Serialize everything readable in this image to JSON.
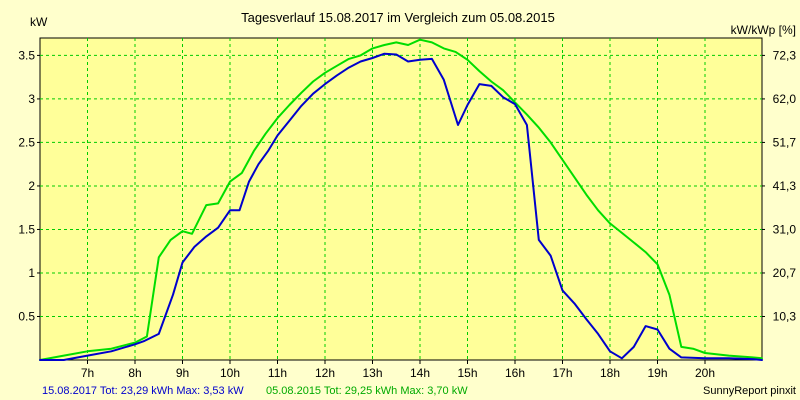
{
  "chart_data": {
    "type": "line",
    "title": "Tagesverlauf 15.08.2017 im Vergleich zum 05.08.2015",
    "ylabel_left": "kW",
    "ylabel_right": "kW/kWp [%]",
    "x_ticks": [
      "7h",
      "8h",
      "9h",
      "10h",
      "11h",
      "12h",
      "13h",
      "14h",
      "15h",
      "16h",
      "17h",
      "18h",
      "19h",
      "20h"
    ],
    "x_range": [
      6.0,
      21.2
    ],
    "y_range_left": [
      0,
      3.7
    ],
    "y_ticks_left": [
      "0.5",
      "1",
      "1.5",
      "2",
      "2.5",
      "3",
      "3.5"
    ],
    "y_ticks_right": [
      "10,3",
      "20,7",
      "31,0",
      "41,3",
      "51,7",
      "62,0",
      "72,3"
    ],
    "grid": true,
    "colors": {
      "background": "#ffffcc",
      "plot_bg": "#ffff99",
      "grid": "#00cc00",
      "title": "#000000"
    },
    "series": [
      {
        "name": "15.08.2017",
        "color": "#0000cc",
        "points": [
          [
            6.0,
            0.0
          ],
          [
            6.5,
            0.0
          ],
          [
            7.0,
            0.05
          ],
          [
            7.5,
            0.1
          ],
          [
            8.0,
            0.18
          ],
          [
            8.2,
            0.22
          ],
          [
            8.5,
            0.3
          ],
          [
            8.8,
            0.75
          ],
          [
            9.0,
            1.12
          ],
          [
            9.25,
            1.3
          ],
          [
            9.5,
            1.42
          ],
          [
            9.75,
            1.52
          ],
          [
            10.0,
            1.72
          ],
          [
            10.2,
            1.72
          ],
          [
            10.4,
            2.05
          ],
          [
            10.6,
            2.25
          ],
          [
            10.8,
            2.4
          ],
          [
            11.0,
            2.58
          ],
          [
            11.25,
            2.75
          ],
          [
            11.5,
            2.92
          ],
          [
            11.75,
            3.06
          ],
          [
            12.0,
            3.17
          ],
          [
            12.25,
            3.27
          ],
          [
            12.5,
            3.36
          ],
          [
            12.75,
            3.43
          ],
          [
            13.0,
            3.47
          ],
          [
            13.25,
            3.52
          ],
          [
            13.5,
            3.51
          ],
          [
            13.75,
            3.43
          ],
          [
            14.0,
            3.45
          ],
          [
            14.25,
            3.46
          ],
          [
            14.5,
            3.22
          ],
          [
            14.8,
            2.7
          ],
          [
            15.0,
            2.93
          ],
          [
            15.25,
            3.17
          ],
          [
            15.5,
            3.15
          ],
          [
            15.75,
            3.02
          ],
          [
            16.0,
            2.94
          ],
          [
            16.25,
            2.7
          ],
          [
            16.5,
            1.38
          ],
          [
            16.75,
            1.2
          ],
          [
            17.0,
            0.8
          ],
          [
            17.25,
            0.65
          ],
          [
            17.5,
            0.47
          ],
          [
            17.75,
            0.3
          ],
          [
            18.0,
            0.1
          ],
          [
            18.25,
            0.02
          ],
          [
            18.5,
            0.15
          ],
          [
            18.75,
            0.39
          ],
          [
            19.0,
            0.35
          ],
          [
            19.25,
            0.13
          ],
          [
            19.5,
            0.03
          ],
          [
            20.0,
            0.02
          ],
          [
            20.5,
            0.02
          ],
          [
            21.0,
            0.01
          ],
          [
            21.2,
            0.0
          ]
        ]
      },
      {
        "name": "05.08.2015",
        "color": "#00dd00",
        "points": [
          [
            6.0,
            0.0
          ],
          [
            6.5,
            0.05
          ],
          [
            7.0,
            0.1
          ],
          [
            7.5,
            0.13
          ],
          [
            8.0,
            0.2
          ],
          [
            8.25,
            0.27
          ],
          [
            8.5,
            1.18
          ],
          [
            8.75,
            1.38
          ],
          [
            9.0,
            1.48
          ],
          [
            9.2,
            1.45
          ],
          [
            9.5,
            1.78
          ],
          [
            9.75,
            1.8
          ],
          [
            10.0,
            2.05
          ],
          [
            10.25,
            2.15
          ],
          [
            10.5,
            2.4
          ],
          [
            10.75,
            2.6
          ],
          [
            11.0,
            2.78
          ],
          [
            11.25,
            2.93
          ],
          [
            11.5,
            3.07
          ],
          [
            11.75,
            3.2
          ],
          [
            12.0,
            3.3
          ],
          [
            12.25,
            3.38
          ],
          [
            12.5,
            3.46
          ],
          [
            12.75,
            3.5
          ],
          [
            13.0,
            3.58
          ],
          [
            13.25,
            3.62
          ],
          [
            13.5,
            3.65
          ],
          [
            13.75,
            3.62
          ],
          [
            14.0,
            3.68
          ],
          [
            14.25,
            3.65
          ],
          [
            14.5,
            3.58
          ],
          [
            14.75,
            3.54
          ],
          [
            15.0,
            3.45
          ],
          [
            15.25,
            3.32
          ],
          [
            15.5,
            3.2
          ],
          [
            15.75,
            3.1
          ],
          [
            16.0,
            2.96
          ],
          [
            16.25,
            2.82
          ],
          [
            16.5,
            2.67
          ],
          [
            16.75,
            2.5
          ],
          [
            17.0,
            2.3
          ],
          [
            17.25,
            2.1
          ],
          [
            17.5,
            1.9
          ],
          [
            17.75,
            1.72
          ],
          [
            18.0,
            1.57
          ],
          [
            18.25,
            1.46
          ],
          [
            18.5,
            1.35
          ],
          [
            18.75,
            1.24
          ],
          [
            19.0,
            1.1
          ],
          [
            19.25,
            0.75
          ],
          [
            19.5,
            0.15
          ],
          [
            19.75,
            0.13
          ],
          [
            20.0,
            0.08
          ],
          [
            20.5,
            0.05
          ],
          [
            21.0,
            0.03
          ],
          [
            21.2,
            0.02
          ]
        ]
      }
    ]
  },
  "footer": {
    "series1_text": "15.08.2017 Tot: 23,29 kWh Max: 3,53 kW",
    "series2_text": "05.08.2015 Tot: 29,25 kWh Max: 3,70 kW",
    "credit": "SunnyReport pinxit"
  }
}
